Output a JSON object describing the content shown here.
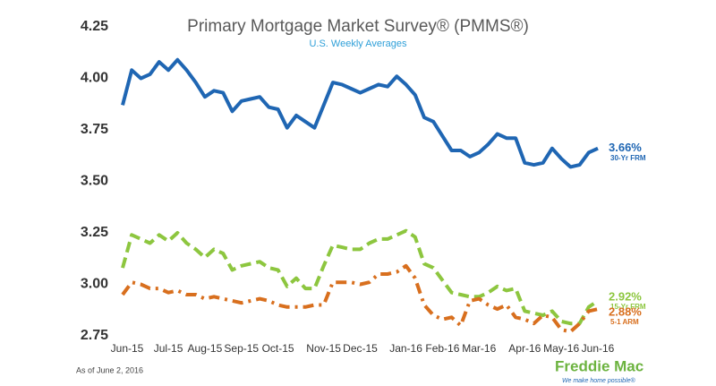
{
  "chart_data": {
    "type": "line",
    "title": "Primary Mortgage Market Survey® (PMMS®)",
    "subtitle": "U.S. Weekly Averages",
    "note": "As of June 2, 2016",
    "logo": {
      "name": "Freddie Mac",
      "tagline": "We make home possible®"
    },
    "categories": [
      "Jun-15",
      null,
      null,
      null,
      null,
      "Jul-15",
      null,
      null,
      null,
      "Aug-15",
      null,
      null,
      null,
      "Sep-15",
      null,
      null,
      null,
      "Oct-15",
      null,
      null,
      null,
      null,
      "Nov-15",
      null,
      null,
      null,
      "Dec-15",
      null,
      null,
      null,
      null,
      "Jan-16",
      null,
      null,
      null,
      "Feb-16",
      null,
      null,
      null,
      "Mar-16",
      null,
      null,
      null,
      null,
      "Apr-16",
      null,
      null,
      null,
      "May-16",
      null,
      null,
      null,
      "Jun-16"
    ],
    "ylim": [
      2.75,
      4.25
    ],
    "yticks": [
      2.75,
      {
        "value": 3,
        "label": "3.00"
      },
      3.25,
      {
        "value": 3.5,
        "label": "3.50"
      },
      3.75,
      {
        "value": 4,
        "label": "4.00"
      },
      4.25
    ],
    "grid": false,
    "series": [
      {
        "name": "30-Yr FRM",
        "color": "#1f66b3",
        "style": "solid",
        "values": [
          3.87,
          4.04,
          4.0,
          4.02,
          4.08,
          4.04,
          4.09,
          4.04,
          3.98,
          3.91,
          3.94,
          3.93,
          3.84,
          3.89,
          3.9,
          3.91,
          3.86,
          3.85,
          3.76,
          3.82,
          3.79,
          3.76,
          3.87,
          3.98,
          3.97,
          3.95,
          3.93,
          3.95,
          3.97,
          3.96,
          4.01,
          3.97,
          3.92,
          3.81,
          3.79,
          3.72,
          3.65,
          3.65,
          3.62,
          3.64,
          3.68,
          3.73,
          3.71,
          3.71,
          3.59,
          3.58,
          3.59,
          3.66,
          3.61,
          3.57,
          3.58,
          3.64,
          3.66
        ],
        "value_labels": [
          null,
          null,
          null,
          null,
          null,
          null,
          null,
          null,
          null,
          null,
          null,
          null,
          null,
          null,
          null,
          null,
          null,
          null,
          null,
          null,
          null,
          null,
          null,
          null,
          null,
          null,
          null,
          null,
          null,
          null,
          null,
          null,
          null,
          null,
          null,
          null,
          null,
          null,
          null,
          null,
          null,
          null,
          null,
          null,
          null,
          null,
          null,
          null,
          null,
          null,
          null,
          null,
          "3.66%"
        ]
      },
      {
        "name": "15-Yr FRM",
        "color": "#8dc63f",
        "style": "dashed",
        "values": [
          3.08,
          3.24,
          3.22,
          3.2,
          3.24,
          3.21,
          3.25,
          3.2,
          3.17,
          3.13,
          3.17,
          3.15,
          3.07,
          3.09,
          3.1,
          3.11,
          3.08,
          3.07,
          2.99,
          3.03,
          2.98,
          2.98,
          3.09,
          3.19,
          3.18,
          3.17,
          3.17,
          3.2,
          3.22,
          3.22,
          3.24,
          3.26,
          3.23,
          3.1,
          3.08,
          3.02,
          2.96,
          2.95,
          2.94,
          2.94,
          2.96,
          2.99,
          2.97,
          2.98,
          2.87,
          2.86,
          2.85,
          2.87,
          2.82,
          2.81,
          2.81,
          2.89,
          2.92
        ],
        "value_labels": [
          null,
          null,
          null,
          null,
          null,
          null,
          null,
          null,
          null,
          null,
          null,
          null,
          null,
          null,
          null,
          null,
          null,
          null,
          null,
          null,
          null,
          null,
          null,
          null,
          null,
          null,
          null,
          null,
          null,
          null,
          null,
          null,
          null,
          null,
          null,
          null,
          null,
          null,
          null,
          null,
          null,
          null,
          null,
          null,
          null,
          null,
          null,
          null,
          null,
          null,
          null,
          null,
          "2.92%"
        ]
      },
      {
        "name": "5-1 ARM",
        "color": "#d86f1e",
        "style": "dashdot",
        "values": [
          2.95,
          3.01,
          3.0,
          2.98,
          2.98,
          2.96,
          2.97,
          2.95,
          2.95,
          2.93,
          2.94,
          2.93,
          2.92,
          2.91,
          2.92,
          2.93,
          2.92,
          2.9,
          2.89,
          2.89,
          2.89,
          2.9,
          2.9,
          3.01,
          3.01,
          3.01,
          3.0,
          3.01,
          3.05,
          3.05,
          3.06,
          3.09,
          3.03,
          2.9,
          2.85,
          2.83,
          2.84,
          2.8,
          2.92,
          2.93,
          2.9,
          2.88,
          2.9,
          2.84,
          2.83,
          2.81,
          2.85,
          2.84,
          2.78,
          2.77,
          2.81,
          2.87,
          2.88
        ],
        "value_labels": [
          null,
          null,
          null,
          null,
          null,
          null,
          null,
          null,
          null,
          null,
          null,
          null,
          null,
          null,
          null,
          null,
          null,
          null,
          null,
          null,
          null,
          null,
          null,
          null,
          null,
          null,
          null,
          null,
          null,
          null,
          null,
          null,
          null,
          null,
          null,
          null,
          null,
          null,
          null,
          null,
          null,
          null,
          null,
          null,
          null,
          null,
          null,
          null,
          null,
          null,
          null,
          null,
          "2.88%"
        ]
      }
    ]
  }
}
